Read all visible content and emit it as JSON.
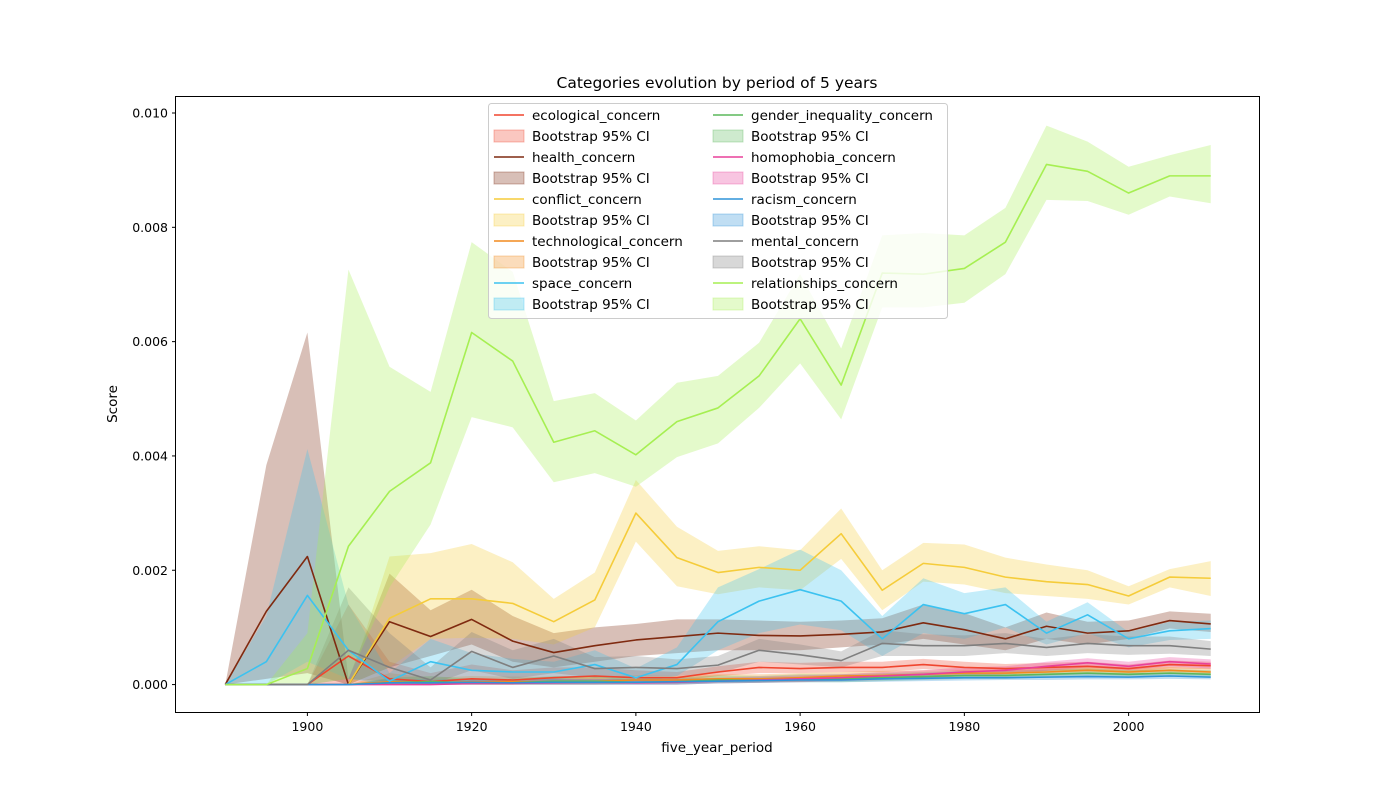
{
  "chart_data": {
    "type": "line",
    "title": "Categories evolution by period of 5 years",
    "xlabel": "five_year_period",
    "ylabel": "Score",
    "xlim": [
      1884,
      2016
    ],
    "ylim": [
      -0.00048,
      0.01028
    ],
    "xticks": [
      1900,
      1920,
      1940,
      1960,
      1980,
      2000
    ],
    "yticks": [
      0.0,
      0.002,
      0.004,
      0.006,
      0.008,
      0.01
    ],
    "ytick_labels": [
      "0.000",
      "0.002",
      "0.004",
      "0.006",
      "0.008",
      "0.010"
    ],
    "grid": false,
    "legend_placement": "top-center",
    "legend_columns": 2,
    "ci_label": "Bootstrap 95% CI",
    "x": [
      1890,
      1895,
      1900,
      1905,
      1910,
      1915,
      1920,
      1925,
      1930,
      1935,
      1940,
      1945,
      1950,
      1955,
      1960,
      1965,
      1970,
      1975,
      1980,
      1985,
      1990,
      1995,
      2000,
      2005,
      2010
    ],
    "series": [
      {
        "name": "ecological_concern",
        "color": "#f0452e",
        "values": [
          0,
          0,
          0,
          0.0005,
          0.0001,
          5e-05,
          0.0001,
          8e-05,
          0.00012,
          0.00015,
          0.00012,
          0.00012,
          0.00022,
          0.0003,
          0.00028,
          0.0003,
          0.0003,
          0.00035,
          0.0003,
          0.00028,
          0.0003,
          0.00032,
          0.00028,
          0.00035,
          0.00033
        ],
        "lower": [
          0,
          0,
          0,
          0,
          0,
          0,
          0,
          0,
          5e-05,
          8e-05,
          6e-05,
          6e-05,
          0.00015,
          0.0002,
          0.0002,
          0.00022,
          0.00022,
          0.00027,
          0.00023,
          0.00022,
          0.00024,
          0.00025,
          0.00022,
          0.00028,
          0.00027
        ],
        "upper": [
          0,
          0,
          0,
          0.0014,
          0.0004,
          0.0002,
          0.00035,
          0.00025,
          0.0003,
          0.0003,
          0.00025,
          0.00022,
          0.00032,
          0.0004,
          0.00038,
          0.0004,
          0.0004,
          0.00045,
          0.0004,
          0.00036,
          0.00038,
          0.0004,
          0.00035,
          0.00042,
          0.0004
        ]
      },
      {
        "name": "health_concern",
        "color": "#7f2a10",
        "values": [
          0,
          0.00128,
          0.00224,
          0,
          0.0011,
          0.00084,
          0.00114,
          0.00076,
          0.00056,
          0.00068,
          0.00078,
          0.00084,
          0.0009,
          0.00086,
          0.00085,
          0.00088,
          0.00092,
          0.00108,
          0.00096,
          0.0008,
          0.00102,
          0.0009,
          0.00094,
          0.00112,
          0.00106
        ],
        "lower": [
          0,
          0.0001,
          0.0002,
          0,
          0.0003,
          0.0005,
          0.0007,
          0.0004,
          0.0003,
          0.0004,
          0.0005,
          0.00055,
          0.0006,
          0.0006,
          0.0006,
          0.00065,
          0.0007,
          0.0008,
          0.0007,
          0.0006,
          0.0008,
          0.0007,
          0.0008,
          0.00098,
          0.00092
        ],
        "upper": [
          0,
          0.00384,
          0.00616,
          0.0001,
          0.00194,
          0.0013,
          0.00166,
          0.0012,
          0.0009,
          0.001,
          0.00106,
          0.00114,
          0.00114,
          0.00112,
          0.0011,
          0.00112,
          0.00116,
          0.0014,
          0.00125,
          0.001,
          0.00126,
          0.0011,
          0.00112,
          0.00128,
          0.00124
        ]
      },
      {
        "name": "conflict_concern",
        "color": "#f5cc3a",
        "values": [
          0,
          0,
          0,
          0,
          0.00116,
          0.0015,
          0.0015,
          0.00142,
          0.0011,
          0.00148,
          0.003,
          0.00222,
          0.00196,
          0.00205,
          0.002,
          0.00264,
          0.00165,
          0.00212,
          0.00205,
          0.00188,
          0.0018,
          0.00175,
          0.00155,
          0.00188,
          0.00186
        ],
        "lower": [
          0,
          0,
          0,
          0,
          0.0003,
          0.0008,
          0.00082,
          0.0008,
          0.0007,
          0.001,
          0.0025,
          0.00172,
          0.00158,
          0.0017,
          0.00165,
          0.0022,
          0.0013,
          0.0018,
          0.00175,
          0.0016,
          0.00155,
          0.0015,
          0.0014,
          0.0017,
          0.00155
        ],
        "upper": [
          0,
          0,
          0,
          0,
          0.00224,
          0.0023,
          0.00246,
          0.00214,
          0.0015,
          0.00196,
          0.00358,
          0.00276,
          0.00234,
          0.00242,
          0.00235,
          0.00308,
          0.002,
          0.00248,
          0.00245,
          0.00222,
          0.0021,
          0.002,
          0.00172,
          0.00202,
          0.00216
        ]
      },
      {
        "name": "technological_concern",
        "color": "#f28a1e",
        "values": [
          0,
          0,
          0,
          0,
          5e-05,
          3e-05,
          5e-05,
          5e-05,
          5e-05,
          6e-05,
          8e-05,
          8e-05,
          0.0001,
          0.0001,
          0.00012,
          0.00015,
          0.00016,
          0.00018,
          0.0002,
          0.0002,
          0.00022,
          0.00025,
          0.00022,
          0.00025,
          0.00022
        ],
        "lower": [
          0,
          0,
          0,
          0,
          0,
          0,
          0,
          0,
          0,
          0,
          2e-05,
          2e-05,
          4e-05,
          4e-05,
          5e-05,
          8e-05,
          0.0001,
          0.00012,
          0.00014,
          0.00014,
          0.00016,
          0.00018,
          0.00016,
          0.00019,
          0.00017
        ],
        "upper": [
          0,
          0,
          0,
          0,
          0.0002,
          0.00012,
          0.00015,
          0.00014,
          0.00013,
          0.00014,
          0.00016,
          0.00015,
          0.00018,
          0.00018,
          0.0002,
          0.00022,
          0.00024,
          0.00025,
          0.00026,
          0.00027,
          0.00028,
          0.00032,
          0.00028,
          0.00031,
          0.00028
        ]
      },
      {
        "name": "space_concern",
        "color": "#3cc2f0",
        "values": [
          0,
          0.0004,
          0.00156,
          0.0006,
          6e-05,
          0.0004,
          0.00025,
          0.00022,
          0.00022,
          0.00035,
          0.00012,
          0.00035,
          0.0011,
          0.00146,
          0.00166,
          0.00146,
          0.0008,
          0.0014,
          0.00124,
          0.0014,
          0.0009,
          0.00122,
          0.0008,
          0.00094,
          0.00098
        ],
        "lower": [
          0,
          0,
          0.0004,
          0.0001,
          0,
          0.0001,
          5e-05,
          8e-05,
          8e-05,
          0.00015,
          2e-05,
          0.00015,
          0.0006,
          0.0009,
          0.00105,
          0.00095,
          0.0005,
          0.0009,
          0.0008,
          0.001,
          0.0007,
          0.0009,
          0.00065,
          0.00078,
          0.0008
        ],
        "upper": [
          0,
          0.0012,
          0.00412,
          0.0014,
          0.0002,
          0.0008,
          0.00055,
          0.00045,
          0.0004,
          0.0006,
          0.00028,
          0.00065,
          0.0017,
          0.00202,
          0.00236,
          0.002,
          0.0012,
          0.00186,
          0.0016,
          0.0017,
          0.0011,
          0.00144,
          0.00092,
          0.0011,
          0.00112
        ]
      },
      {
        "name": "gender_inequality_concern",
        "color": "#5cb85c",
        "values": [
          0,
          0,
          0,
          0,
          3e-05,
          5e-05,
          3e-05,
          3e-05,
          6e-05,
          6e-05,
          4e-05,
          5e-05,
          8e-05,
          8e-05,
          0.0001,
          0.0001,
          0.00012,
          0.00014,
          0.00016,
          0.00016,
          0.00018,
          0.0002,
          0.00018,
          0.0002,
          0.00018
        ],
        "lower": [
          0,
          0,
          0,
          0,
          0,
          0,
          0,
          0,
          0,
          0,
          0,
          0,
          2e-05,
          3e-05,
          4e-05,
          4e-05,
          6e-05,
          8e-05,
          0.0001,
          0.0001,
          0.00012,
          0.00014,
          0.00013,
          0.00014,
          0.00012
        ],
        "upper": [
          0,
          0,
          0,
          0,
          0.00012,
          0.00015,
          0.0001,
          0.0001,
          0.00015,
          0.00014,
          0.0001,
          0.00012,
          0.00016,
          0.00015,
          0.00018,
          0.00018,
          0.0002,
          0.00022,
          0.00024,
          0.00024,
          0.00026,
          0.00028,
          0.00025,
          0.00027,
          0.00025
        ]
      },
      {
        "name": "homophobia_concern",
        "color": "#e8409a",
        "values": [
          0,
          0,
          0,
          0,
          0,
          0,
          2e-05,
          2e-05,
          3e-05,
          4e-05,
          3e-05,
          4e-05,
          6e-05,
          8e-05,
          0.0001,
          0.00012,
          0.00015,
          0.00018,
          0.00022,
          0.00025,
          0.00032,
          0.00038,
          0.00032,
          0.0004,
          0.00036
        ],
        "lower": [
          0,
          0,
          0,
          0,
          0,
          0,
          0,
          0,
          0,
          0,
          0,
          0,
          2e-05,
          3e-05,
          4e-05,
          6e-05,
          8e-05,
          0.00011,
          0.00015,
          0.00018,
          0.00024,
          0.0003,
          0.00025,
          0.00032,
          0.00028
        ],
        "upper": [
          0,
          0,
          0,
          0,
          0,
          0,
          8e-05,
          8e-05,
          0.0001,
          0.0001,
          9e-05,
          0.0001,
          0.00012,
          0.00014,
          0.00016,
          0.00018,
          0.00022,
          0.00025,
          0.0003,
          0.00032,
          0.0004,
          0.00046,
          0.0004,
          0.00048,
          0.00044
        ]
      },
      {
        "name": "racism_concern",
        "color": "#2f93d8",
        "values": [
          0,
          0,
          0,
          0,
          3e-05,
          3e-05,
          4e-05,
          3e-05,
          4e-05,
          4e-05,
          4e-05,
          5e-05,
          6e-05,
          7e-05,
          8e-05,
          8e-05,
          0.0001,
          0.00011,
          0.00012,
          0.00012,
          0.00013,
          0.00014,
          0.00013,
          0.00015,
          0.00013
        ],
        "lower": [
          0,
          0,
          0,
          0,
          0,
          0,
          0,
          0,
          0,
          0,
          0,
          0,
          2e-05,
          3e-05,
          4e-05,
          4e-05,
          5e-05,
          6e-05,
          7e-05,
          8e-05,
          8e-05,
          9e-05,
          9e-05,
          0.0001,
          9e-05
        ],
        "upper": [
          0,
          0,
          0,
          0,
          0.0001,
          9e-05,
          0.0001,
          8e-05,
          0.0001,
          9e-05,
          0.0001,
          0.0001,
          0.00011,
          0.00012,
          0.00013,
          0.00013,
          0.00015,
          0.00016,
          0.00017,
          0.00017,
          0.00018,
          0.0002,
          0.00018,
          0.0002,
          0.00018
        ]
      },
      {
        "name": "mental_concern",
        "color": "#7f7f7f",
        "values": [
          0,
          0,
          0,
          0.0006,
          0.0003,
          8e-05,
          0.00058,
          0.0003,
          0.0005,
          0.00028,
          0.0003,
          0.00028,
          0.00034,
          0.0006,
          0.00052,
          0.00042,
          0.00072,
          0.00068,
          0.00068,
          0.00072,
          0.00065,
          0.00072,
          0.00068,
          0.00068,
          0.00062
        ],
        "lower": [
          0,
          0,
          0,
          0.0001,
          5e-05,
          0,
          0.00025,
          0.0001,
          0.0002,
          0.00012,
          0.00015,
          0.00015,
          0.0002,
          0.0004,
          0.00035,
          0.0003,
          0.0005,
          0.0005,
          0.0005,
          0.00055,
          0.0005,
          0.00055,
          0.00052,
          0.00054,
          0.0005
        ],
        "upper": [
          0,
          0,
          0,
          0.0017,
          0.0009,
          0.0003,
          0.00092,
          0.0006,
          0.0008,
          0.00048,
          0.0005,
          0.00044,
          0.0005,
          0.0008,
          0.0007,
          0.00058,
          0.00095,
          0.00088,
          0.00086,
          0.0009,
          0.0008,
          0.00088,
          0.00084,
          0.00084,
          0.00076
        ]
      },
      {
        "name": "relationships_concern",
        "color": "#a6ef52",
        "values": [
          0,
          0,
          0.00028,
          0.00242,
          0.00338,
          0.00388,
          0.00616,
          0.00566,
          0.00424,
          0.00444,
          0.00402,
          0.0046,
          0.00484,
          0.0054,
          0.0064,
          0.00524,
          0.0072,
          0.00718,
          0.00728,
          0.00774,
          0.0091,
          0.00898,
          0.0086,
          0.0089,
          0.0089
        ],
        "lower": [
          0,
          0,
          0,
          0.0001,
          0.0017,
          0.0028,
          0.00468,
          0.0045,
          0.00354,
          0.0037,
          0.00346,
          0.00398,
          0.00422,
          0.00484,
          0.00562,
          0.00464,
          0.0066,
          0.0066,
          0.00668,
          0.00718,
          0.00848,
          0.00846,
          0.00822,
          0.00854,
          0.00842
        ],
        "upper": [
          0,
          0,
          0.0009,
          0.00726,
          0.00556,
          0.00512,
          0.00774,
          0.00722,
          0.00496,
          0.0051,
          0.00462,
          0.00528,
          0.0054,
          0.00598,
          0.00718,
          0.00588,
          0.00786,
          0.0079,
          0.00786,
          0.00834,
          0.00978,
          0.0095,
          0.00906,
          0.00926,
          0.00944
        ]
      }
    ],
    "legend_order_left": [
      "ecological_concern",
      "health_concern",
      "conflict_concern",
      "technological_concern",
      "space_concern"
    ],
    "legend_order_right": [
      "gender_inequality_concern",
      "homophobia_concern",
      "racism_concern",
      "mental_concern",
      "relationships_concern"
    ]
  }
}
